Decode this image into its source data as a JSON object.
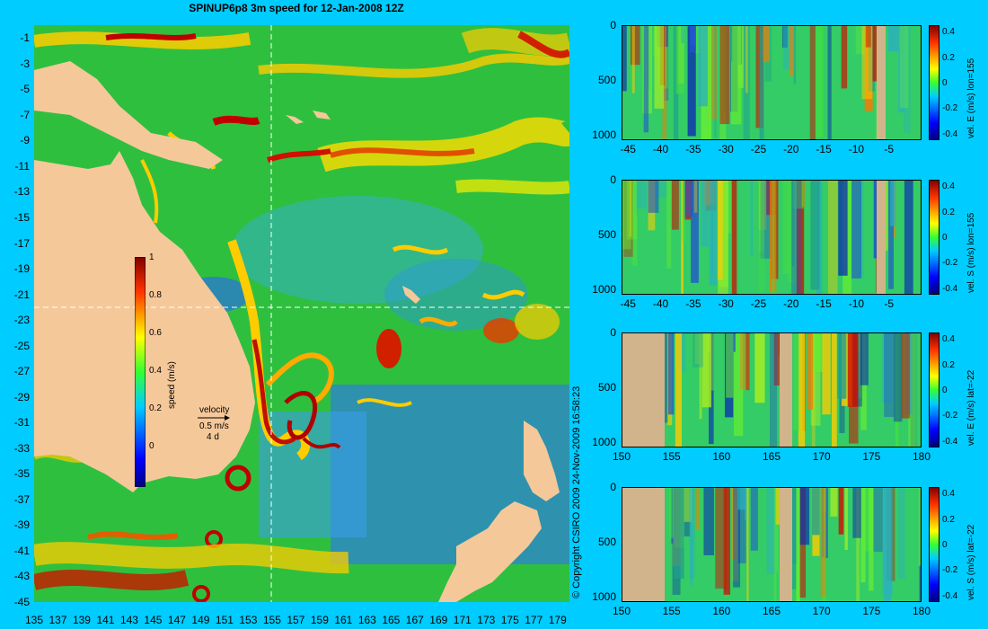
{
  "title": "SPINUP6p8 3m speed for 12-Jan-2008 12Z",
  "copyright": "© Copyright CSIRO 2009   24-Nov-2009 16:58:23",
  "colors": {
    "background": "#00ccff",
    "land": "#f5c89a",
    "section_land": "#d2b48c"
  },
  "chart_data": [
    {
      "type": "heatmap",
      "name": "speed-map",
      "x_ticks": [
        "135",
        "137",
        "139",
        "141",
        "143",
        "145",
        "147",
        "149",
        "151",
        "153",
        "155",
        "157",
        "159",
        "161",
        "163",
        "165",
        "167",
        "169",
        "171",
        "173",
        "175",
        "177",
        "179"
      ],
      "y_ticks": [
        "-1",
        "-3",
        "-5",
        "-7",
        "-9",
        "-11",
        "-13",
        "-15",
        "-17",
        "-19",
        "-21",
        "-23",
        "-25",
        "-27",
        "-29",
        "-31",
        "-33",
        "-35",
        "-37",
        "-39",
        "-41",
        "-43",
        "-45"
      ],
      "xlim": [
        135,
        180
      ],
      "ylim": [
        -45,
        0
      ],
      "crosshair": {
        "lon": 155,
        "lat": -22
      },
      "colorbar": {
        "label": "speed (m/s)",
        "ticks": [
          "1",
          "0.8",
          "0.6",
          "0.4",
          "0.2",
          "0"
        ],
        "range": [
          0,
          1
        ]
      },
      "velocity_key": {
        "line1": "velocity",
        "line2": "0.5 m/s",
        "line3": "4 d"
      }
    },
    {
      "type": "heatmap",
      "name": "section-vel-e-lon155",
      "label": "vel. E (m/s) lon=155",
      "x_ticks": [
        "-45",
        "-40",
        "-35",
        "-30",
        "-25",
        "-20",
        "-15",
        "-10",
        "-5"
      ],
      "y_ticks": [
        "0",
        "500",
        "1000"
      ],
      "colorbar_ticks": [
        "0.4",
        "0.2",
        "0",
        "-0.2",
        "-0.4"
      ],
      "xlim": [
        -46,
        0
      ],
      "ylim": [
        1050,
        0
      ]
    },
    {
      "type": "heatmap",
      "name": "section-vel-s-lon155",
      "label": "vel. S (m/s) lon=155",
      "x_ticks": [
        "-45",
        "-40",
        "-35",
        "-30",
        "-25",
        "-20",
        "-15",
        "-10",
        "-5"
      ],
      "y_ticks": [
        "0",
        "500",
        "1000"
      ],
      "colorbar_ticks": [
        "0.4",
        "0.2",
        "0",
        "-0.2",
        "-0.4"
      ],
      "xlim": [
        -46,
        0
      ],
      "ylim": [
        1050,
        0
      ]
    },
    {
      "type": "heatmap",
      "name": "section-vel-e-lat22",
      "label": "vel. E (m/s) lat=-22",
      "x_ticks": [
        "150",
        "155",
        "160",
        "165",
        "170",
        "175",
        "180"
      ],
      "y_ticks": [
        "0",
        "500",
        "1000"
      ],
      "colorbar_ticks": [
        "0.4",
        "0.2",
        "0",
        "-0.2",
        "-0.4"
      ],
      "xlim": [
        150,
        180
      ],
      "ylim": [
        1050,
        0
      ]
    },
    {
      "type": "heatmap",
      "name": "section-vel-s-lat22",
      "label": "vel. S (m/s) lat=-22",
      "x_ticks": [
        "150",
        "155",
        "160",
        "165",
        "170",
        "175",
        "180"
      ],
      "y_ticks": [
        "0",
        "500",
        "1000"
      ],
      "colorbar_ticks": [
        "0.4",
        "0.2",
        "0",
        "-0.2",
        "-0.4"
      ],
      "xlim": [
        150,
        180
      ],
      "ylim": [
        1050,
        0
      ]
    }
  ]
}
